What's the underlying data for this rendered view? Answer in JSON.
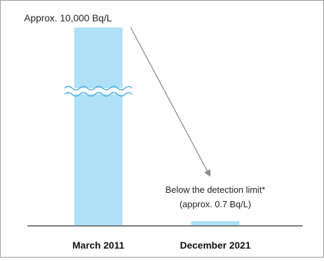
{
  "chart_data": {
    "type": "bar",
    "title": "",
    "xlabel": "",
    "ylabel": "",
    "axis_break": true,
    "grid": false,
    "categories": [
      "March 2011",
      "December 2021"
    ],
    "values": [
      10000,
      0.7
    ],
    "bar_color": "#aee0f7",
    "annotations": {
      "first_value_label": "Approx. 10,000 Bq/L",
      "second_value_label_line1": "Below the detection limit*",
      "second_value_label_line2": "(approx. 0.7 Bq/L)"
    },
    "arrow_color": "#8a8a8a",
    "break_color": "#5ab4e0"
  }
}
